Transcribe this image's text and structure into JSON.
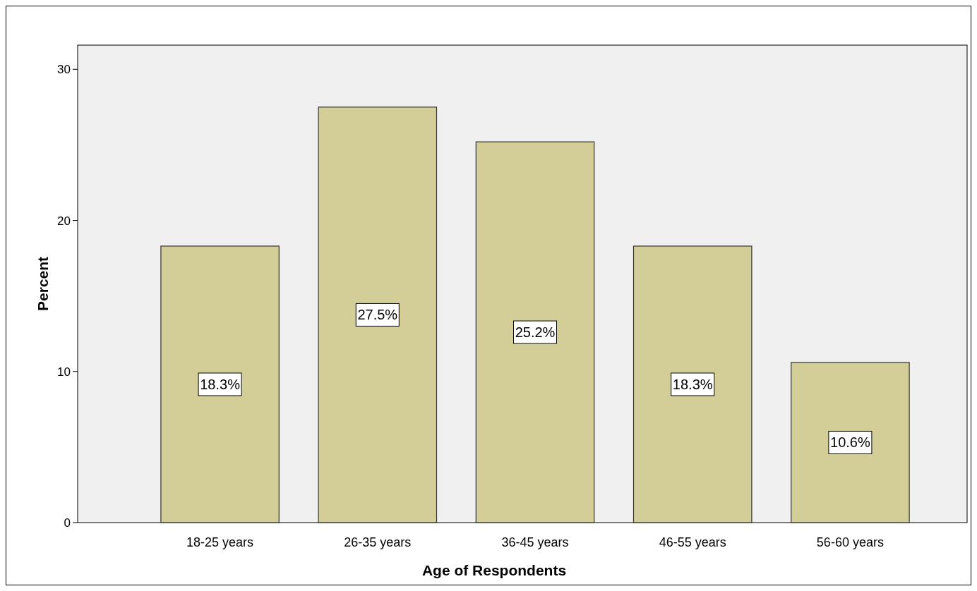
{
  "chart_data": {
    "type": "bar",
    "xlabel": "Age of Respondents",
    "ylabel": "Percent",
    "categories": [
      "18-25 years",
      "26-35 years",
      "36-45 years",
      "46-55 years",
      "56-60 years"
    ],
    "values": [
      18.3,
      27.5,
      25.2,
      18.3,
      10.6
    ],
    "value_labels": [
      "18.3%",
      "27.5%",
      "25.2%",
      "18.3%",
      "10.6%"
    ],
    "color": "#d3ce97",
    "ylim": [
      0,
      31.6
    ],
    "yticks": [
      0,
      10,
      20,
      30
    ],
    "grid": false
  }
}
